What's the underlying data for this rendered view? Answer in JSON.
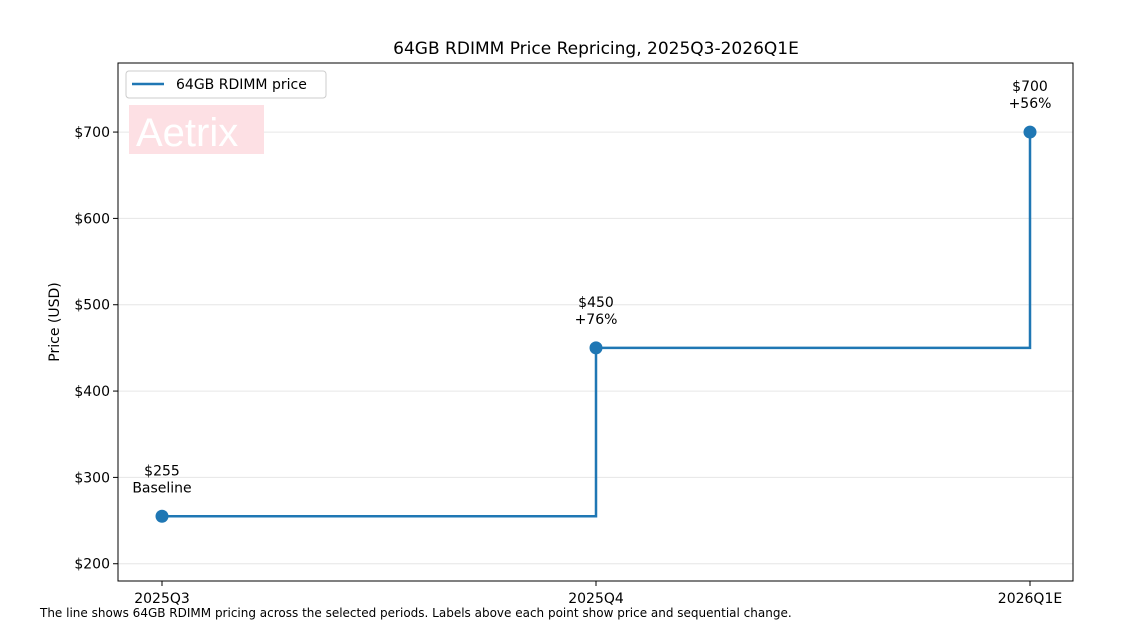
{
  "chart_data": {
    "type": "line",
    "step": "post",
    "title": "64GB RDIMM Price Repricing, 2025Q3-2026Q1E",
    "xlabel": "",
    "ylabel": "Price (USD)",
    "categories": [
      "2025Q3",
      "2025Q4",
      "2026Q1E"
    ],
    "series": [
      {
        "name": "64GB RDIMM price",
        "values": [
          255,
          450,
          700
        ],
        "color": "#1f77b4",
        "point_labels": [
          [
            "$255",
            "Baseline"
          ],
          [
            "$450",
            "+76%"
          ],
          [
            "$700",
            "+56%"
          ]
        ]
      }
    ],
    "ylim": [
      180,
      780
    ],
    "yticks": [
      200,
      300,
      400,
      500,
      600,
      700
    ],
    "ytick_labels": [
      "$200",
      "$300",
      "$400",
      "$500",
      "$600",
      "$700"
    ],
    "grid": "horizontal",
    "legend_position": "upper left"
  },
  "watermark": {
    "text": "Aetrix",
    "bg_color": "#fde0e4"
  },
  "caption": "The line shows 64GB RDIMM pricing across the selected periods. Labels above each point show price and sequential change."
}
